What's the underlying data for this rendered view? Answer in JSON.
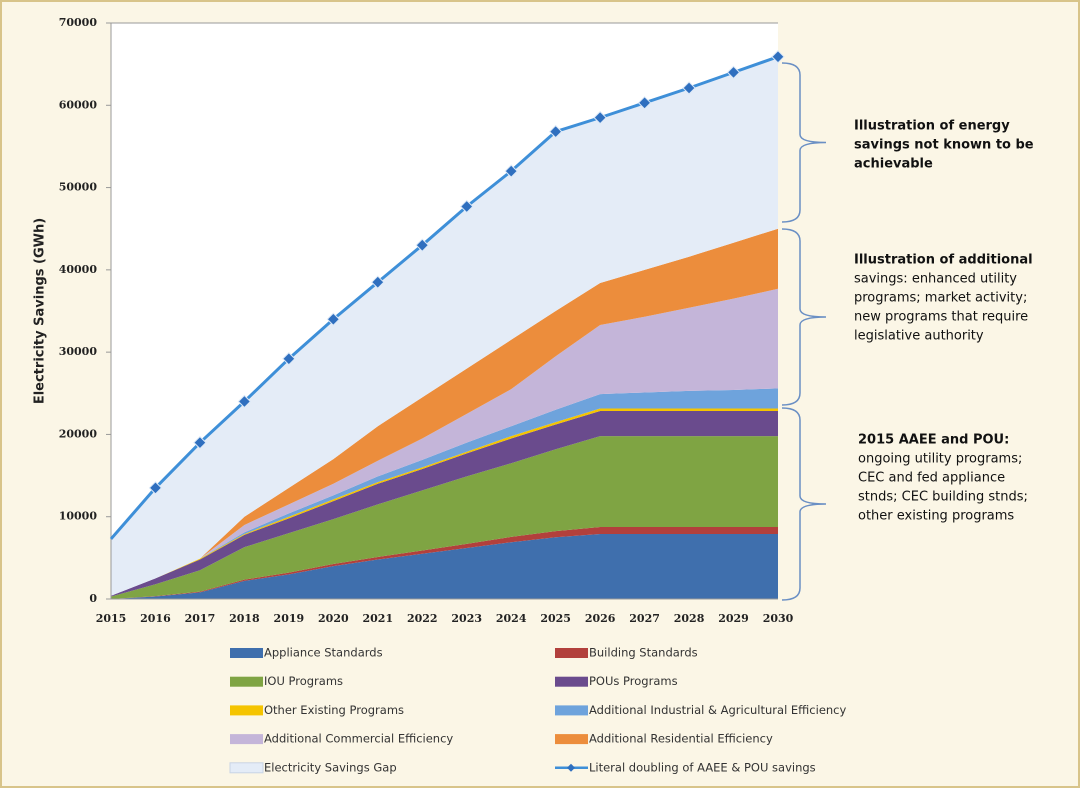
{
  "chart_data": {
    "type": "stacked_area",
    "y_label": "Electricity Savings (GWh)",
    "categories": [
      "2015",
      "2016",
      "2017",
      "2018",
      "2019",
      "2020",
      "2021",
      "2022",
      "2023",
      "2024",
      "2025",
      "2026",
      "2027",
      "2028",
      "2029",
      "2030"
    ],
    "ylim": [
      0,
      70000
    ],
    "yticks": [
      0,
      10000,
      20000,
      30000,
      40000,
      50000,
      60000,
      70000
    ],
    "series": [
      {
        "name": "Appliance Standards",
        "color": "#3f6fad",
        "values": [
          0,
          300,
          800,
          2200,
          3000,
          4000,
          4800,
          5500,
          6200,
          6900,
          7500,
          7900,
          7900,
          7900,
          7900,
          7900
        ]
      },
      {
        "name": "Building Standards",
        "color": "#b2403c",
        "values": [
          0,
          50,
          100,
          150,
          200,
          250,
          300,
          400,
          500,
          650,
          750,
          850,
          850,
          850,
          850,
          850
        ]
      },
      {
        "name": "IOU Programs",
        "color": "#7fa443",
        "values": [
          300,
          1450,
          2600,
          3950,
          4800,
          5450,
          6400,
          7300,
          8200,
          8950,
          9950,
          11050,
          11050,
          11050,
          11050,
          11050
        ]
      },
      {
        "name": "POUs Programs",
        "color": "#6a4b8d",
        "values": [
          100,
          700,
          1300,
          1500,
          1800,
          2200,
          2500,
          2600,
          2800,
          3000,
          3000,
          3050,
          3050,
          3050,
          3050,
          3050
        ]
      },
      {
        "name": "Other Existing Programs",
        "color": "#f5c400",
        "values": [
          0,
          0,
          100,
          100,
          200,
          200,
          200,
          200,
          200,
          300,
          300,
          300,
          300,
          300,
          300,
          300
        ]
      },
      {
        "name": "Additional Industrial & Agricultural Efficiency",
        "color": "#6ea3dc",
        "values": [
          0,
          0,
          0,
          200,
          400,
          500,
          700,
          900,
          1100,
          1200,
          1500,
          1750,
          1950,
          2150,
          2250,
          2450
        ]
      },
      {
        "name": "Additional Commercial Efficiency",
        "color": "#c4b5d9",
        "values": [
          0,
          0,
          0,
          900,
          1100,
          1400,
          1900,
          2600,
          3500,
          4500,
          6500,
          8400,
          9200,
          10100,
          11100,
          12100
        ]
      },
      {
        "name": "Additional Residential Efficiency",
        "color": "#ec8d3c",
        "values": [
          0,
          0,
          0,
          1000,
          2000,
          3000,
          4200,
          5000,
          5500,
          6000,
          5500,
          5100,
          5700,
          6200,
          6800,
          7300
        ]
      },
      {
        "name": "Electricity Savings Gap",
        "color": "#e4ecf7",
        "values": [
          6900,
          11000,
          14100,
          14000,
          15700,
          17000,
          17500,
          18500,
          19700,
          20500,
          21800,
          20100,
          20300,
          20500,
          20700,
          20900
        ]
      },
      {
        "name": "Literal doubling of AAEE & POU savings",
        "color": "#3e8fd8",
        "type": "line",
        "values": [
          7300,
          13500,
          19000,
          24000,
          29200,
          34000,
          38500,
          43000,
          47700,
          52000,
          56800,
          58500,
          60300,
          62100,
          64000,
          65900
        ]
      }
    ],
    "annotations": [
      {
        "lines": [
          "Illustration of energy",
          "savings not known to be",
          "achievable"
        ]
      },
      {
        "lines": [
          "Illustration of additional",
          "savings: enhanced utility",
          "programs; market activity;",
          "new programs that require",
          "legislative authority"
        ]
      },
      {
        "lines": [
          "2015 AAEE and POU:",
          "ongoing utility programs;",
          "CEC and fed appliance",
          "stnds; CEC building stnds;",
          "other existing programs"
        ]
      }
    ]
  }
}
